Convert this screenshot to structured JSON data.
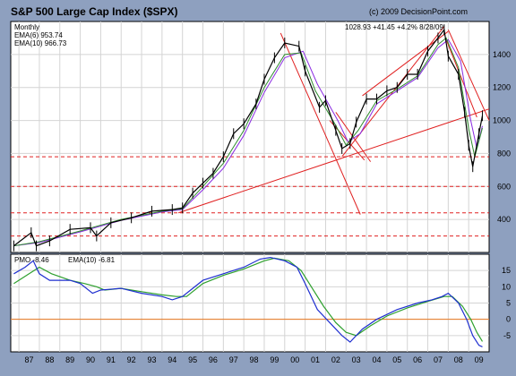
{
  "header": {
    "title": "S&P 500 Large Cap Index ($SPX)",
    "copyright": "(c) 2009 DecisionPoint.com"
  },
  "legend": {
    "period": "Monthly",
    "ema6": "EMA(6) 953.74",
    "ema10": "EMA(10) 966.73",
    "quote": "1028.93  +41.45  +4.2%  8/28/09"
  },
  "pmo_legend": {
    "pmo": "PMO -8.46",
    "ema": "EMA(10) -6.81"
  },
  "colors": {
    "frame": "#8ea0bf",
    "price": "#000000",
    "ema6": "#2e8b2e",
    "ema10": "#8a2be2",
    "pmo": "#1f2fd0",
    "pmo_ema": "#2ea02e",
    "trend": "#e02020",
    "zero": "#e87820"
  },
  "chart_data": [
    {
      "type": "line",
      "title": "S&P 500 Large Cap Index ($SPX)",
      "ylim": [
        200,
        1600
      ],
      "yticks": [
        400,
        600,
        800,
        1000,
        1200,
        1400
      ],
      "grid": true,
      "legend": "top-left",
      "series": [
        {
          "name": "$SPX",
          "x": [
            1986.75,
            1987.6,
            1987.85,
            1988.5,
            1989.5,
            1990.5,
            1990.8,
            1991.5,
            1992.5,
            1993.5,
            1994.5,
            1995.0,
            1995.5,
            1996.0,
            1996.5,
            1997.0,
            1997.5,
            1998.0,
            1998.6,
            1999.0,
            1999.5,
            2000.0,
            2000.7,
            2001.0,
            2001.7,
            2002.0,
            2002.5,
            2002.8,
            2003.2,
            2003.5,
            2004.0,
            2004.5,
            2005.0,
            2005.5,
            2006.0,
            2006.5,
            2007.0,
            2007.5,
            2007.8,
            2008.0,
            2008.5,
            2008.8,
            2009.0,
            2009.2,
            2009.5,
            2009.67
          ],
          "values": [
            240,
            320,
            240,
            270,
            340,
            350,
            300,
            380,
            410,
            450,
            460,
            470,
            560,
            620,
            680,
            780,
            920,
            980,
            1100,
            1250,
            1380,
            1470,
            1450,
            1300,
            1080,
            1120,
            940,
            830,
            860,
            990,
            1130,
            1130,
            1180,
            1200,
            1280,
            1280,
            1420,
            1500,
            1550,
            1390,
            1280,
            1050,
            850,
            720,
            920,
            1029
          ]
        },
        {
          "name": "EMA(6)",
          "x": [
            1986.75,
            1988.0,
            1990.0,
            1992.0,
            1994.0,
            1995.0,
            1996.0,
            1997.0,
            1998.0,
            1999.0,
            2000.0,
            2000.8,
            2001.5,
            2002.5,
            2003.0,
            2003.6,
            2004.5,
            2005.5,
            2006.5,
            2007.5,
            2007.9,
            2008.5,
            2009.0,
            2009.3,
            2009.67
          ],
          "values": [
            240,
            265,
            330,
            400,
            450,
            465,
            600,
            740,
            940,
            1200,
            1400,
            1410,
            1180,
            970,
            850,
            940,
            1120,
            1190,
            1270,
            1460,
            1500,
            1320,
            950,
            780,
            954
          ]
        },
        {
          "name": "EMA(10)",
          "x": [
            1986.75,
            1988.0,
            1990.0,
            1992.0,
            1994.0,
            1995.0,
            1996.0,
            1997.0,
            1998.0,
            1999.0,
            2000.0,
            2000.9,
            2001.6,
            2002.6,
            2003.1,
            2003.7,
            2004.5,
            2005.5,
            2006.5,
            2007.5,
            2008.0,
            2008.6,
            2009.1,
            2009.4,
            2009.67
          ],
          "values": [
            240,
            260,
            325,
            395,
            445,
            460,
            580,
            710,
            910,
            1170,
            1380,
            1420,
            1220,
            1000,
            870,
            920,
            1100,
            1180,
            1260,
            1440,
            1490,
            1360,
            1000,
            830,
            967
          ]
        }
      ]
    },
    {
      "type": "line",
      "title": "",
      "ylim": [
        -10,
        20
      ],
      "yticks": [
        -5,
        0,
        5,
        10,
        15
      ],
      "grid": true,
      "legend": "top-left",
      "series": [
        {
          "name": "PMO",
          "x": [
            1986.75,
            1987.3,
            1987.7,
            1988.0,
            1988.5,
            1989.5,
            1990.0,
            1990.6,
            1991.0,
            1992.0,
            1993.0,
            1994.0,
            1994.5,
            1995.0,
            1996.0,
            1997.0,
            1998.0,
            1998.8,
            1999.3,
            2000.0,
            2000.6,
            2001.0,
            2001.6,
            2002.2,
            2002.8,
            2003.2,
            2003.8,
            2004.5,
            2005.5,
            2006.5,
            2007.2,
            2007.7,
            2008.0,
            2008.5,
            2008.9,
            2009.2,
            2009.5,
            2009.67
          ],
          "values": [
            14,
            16,
            18,
            14,
            12,
            12,
            11,
            8,
            9,
            9.5,
            8,
            7,
            6,
            7,
            12,
            14,
            16,
            18.5,
            19,
            18,
            16,
            11,
            3,
            -1,
            -5,
            -7,
            -3,
            0,
            3,
            5,
            6,
            7,
            8,
            5,
            0,
            -5,
            -8,
            -8.46
          ]
        },
        {
          "name": "EMA(10)",
          "x": [
            1986.75,
            1987.5,
            1988.0,
            1988.6,
            1989.5,
            1990.2,
            1990.8,
            1991.2,
            1992.0,
            1993.0,
            1994.0,
            1994.7,
            1995.2,
            1996.0,
            1997.0,
            1998.0,
            1999.0,
            1999.5,
            2000.2,
            2000.8,
            2001.3,
            2001.9,
            2002.5,
            2003.0,
            2003.5,
            2004.2,
            2005.0,
            2006.0,
            2007.0,
            2007.8,
            2008.2,
            2008.7,
            2009.1,
            2009.4,
            2009.67
          ],
          "values": [
            11,
            14,
            16,
            14,
            12,
            11,
            10,
            9,
            9.5,
            8.5,
            7.5,
            7,
            7,
            11,
            13.5,
            15.5,
            18,
            18.8,
            18,
            15,
            10,
            4,
            -1,
            -4,
            -5,
            -2,
            1,
            3.5,
            5.5,
            7,
            7,
            4,
            0,
            -4,
            -6.81
          ]
        }
      ]
    }
  ],
  "x_axis": {
    "ticks": [
      "87",
      "88",
      "89",
      "90",
      "91",
      "92",
      "93",
      "94",
      "95",
      "96",
      "97",
      "98",
      "99",
      "00",
      "01",
      "02",
      "03",
      "04",
      "05",
      "06",
      "07",
      "08",
      "09"
    ]
  },
  "trendlines": {
    "red_dashed_levels": [
      300,
      440,
      600,
      780
    ]
  }
}
